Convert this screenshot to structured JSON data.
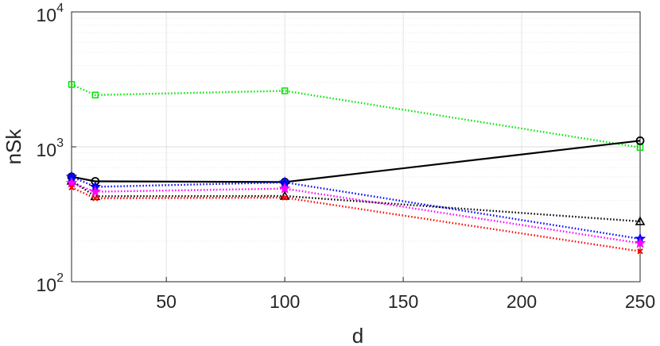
{
  "chart_data": {
    "type": "line",
    "xlabel": "d",
    "ylabel": "nSk",
    "xlim": [
      10,
      250
    ],
    "ylim": [
      100,
      10000
    ],
    "yscale": "log",
    "grid": "on",
    "legend": "none",
    "x_ticks": [
      "50",
      "100",
      "150",
      "200",
      "250"
    ],
    "y_ticks": [
      {
        "base": "10",
        "exp": "2"
      },
      {
        "base": "10",
        "exp": "3"
      },
      {
        "base": "10",
        "exp": "4"
      }
    ],
    "x": [
      10,
      20,
      100,
      250
    ],
    "series": [
      {
        "key": "green",
        "color": "#00e600",
        "linestyle": "dotted",
        "marker": "square",
        "values": [
          2900,
          2420,
          2600,
          990
        ]
      },
      {
        "key": "black-solid",
        "color": "#000000",
        "linestyle": "solid",
        "marker": "circle",
        "values": [
          600,
          555,
          548,
          1110
        ]
      },
      {
        "key": "black-dotted",
        "color": "#000000",
        "linestyle": "dotted",
        "marker": "triangle",
        "values": [
          560,
          430,
          432,
          280
        ]
      },
      {
        "key": "blue",
        "color": "#0000ff",
        "linestyle": "dotted",
        "marker": "star",
        "values": [
          600,
          505,
          545,
          208
        ]
      },
      {
        "key": "magenta",
        "color": "#ff00ff",
        "linestyle": "dotted",
        "marker": "star",
        "values": [
          540,
          465,
          490,
          193
        ]
      },
      {
        "key": "red",
        "color": "#ff0000",
        "linestyle": "dotted",
        "marker": "x",
        "values": [
          500,
          415,
          420,
          168
        ]
      }
    ]
  }
}
